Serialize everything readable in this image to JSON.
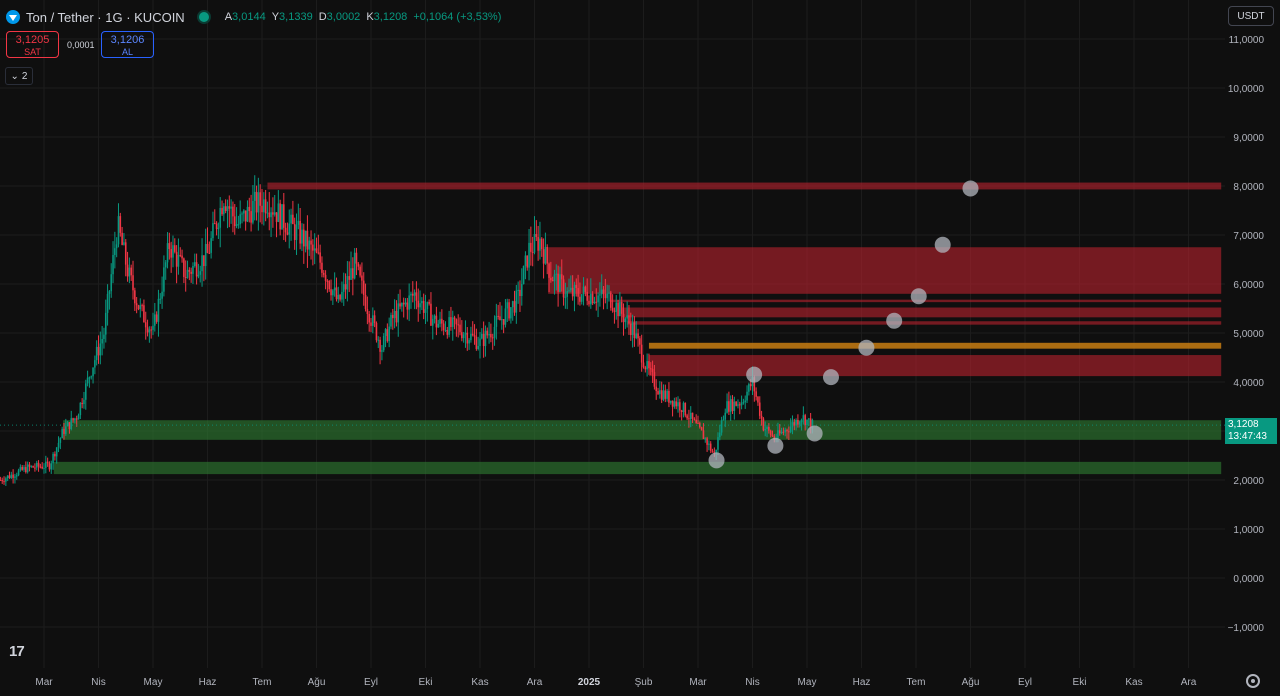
{
  "header": {
    "symbol": "Ton / Tether · 1G · KUCOIN",
    "ohlc": [
      {
        "k": "A",
        "v": "3,0144"
      },
      {
        "k": "Y",
        "v": "3,1339"
      },
      {
        "k": "D",
        "v": "3,0002"
      },
      {
        "k": "K",
        "v": "3,1208"
      }
    ],
    "change": "+0,1064 (+3,53%)"
  },
  "trade": {
    "sell_price": "3,1205",
    "sell_label": "SAT",
    "spread": "0,0001",
    "buy_price": "3,1206",
    "buy_label": "AL"
  },
  "collapse": {
    "label": "2"
  },
  "currency": "USDT",
  "price_tag": {
    "price": "3,1208",
    "countdown": "13:47:43"
  },
  "tv_logo": "17",
  "colors": {
    "up": "#089981",
    "down": "#f23645",
    "resistance": "#b4222d",
    "support": "#2e7d32",
    "orange": "#c77d12",
    "circle": "#b2b5be"
  },
  "chart_data": {
    "type": "candlestick",
    "y_axis": {
      "range": [
        -1.6,
        11.6
      ],
      "ticks": [
        11,
        10,
        9,
        8,
        7,
        6,
        5,
        4,
        3,
        2,
        1,
        0,
        -1
      ],
      "tick_labels": [
        "11,0000",
        "10,0000",
        "9,0000",
        "8,0000",
        "7,0000",
        "6,0000",
        "5,0000",
        "4,0000",
        "3,0000",
        "2,0000",
        "1,0000",
        "0,0000",
        "−1,0000"
      ]
    },
    "x_axis": {
      "labels": [
        "Mar",
        "Nis",
        "May",
        "Haz",
        "Tem",
        "Ağu",
        "Eyl",
        "Eki",
        "Kas",
        "Ara",
        "2025",
        "Şub",
        "Mar",
        "Nis",
        "May",
        "Haz",
        "Tem",
        "Ağu",
        "Eyl",
        "Eki",
        "Kas",
        "Ara"
      ],
      "bold": [
        "2025"
      ],
      "months_from_start": [
        0,
        1,
        2,
        3,
        4,
        5,
        6,
        7,
        8,
        9,
        10,
        11,
        12,
        13,
        14,
        15,
        16,
        17,
        18,
        19,
        20,
        21
      ]
    },
    "price_anchors": [
      {
        "m": -0.8,
        "p": 2.0
      },
      {
        "m": -0.3,
        "p": 2.25
      },
      {
        "m": 0.1,
        "p": 2.3
      },
      {
        "m": 0.35,
        "p": 3.0
      },
      {
        "m": 0.6,
        "p": 3.3
      },
      {
        "m": 0.85,
        "p": 4.2
      },
      {
        "m": 1.1,
        "p": 5.0
      },
      {
        "m": 1.35,
        "p": 7.2
      },
      {
        "m": 1.55,
        "p": 6.2
      },
      {
        "m": 1.75,
        "p": 5.5
      },
      {
        "m": 2.0,
        "p": 5.0
      },
      {
        "m": 2.3,
        "p": 6.8
      },
      {
        "m": 2.6,
        "p": 6.2
      },
      {
        "m": 3.0,
        "p": 6.6
      },
      {
        "m": 3.3,
        "p": 7.8
      },
      {
        "m": 3.55,
        "p": 7.2
      },
      {
        "m": 3.85,
        "p": 7.6
      },
      {
        "m": 4.1,
        "p": 7.7
      },
      {
        "m": 4.4,
        "p": 7.3
      },
      {
        "m": 4.7,
        "p": 7.0
      },
      {
        "m": 5.1,
        "p": 6.4
      },
      {
        "m": 5.4,
        "p": 5.6
      },
      {
        "m": 5.7,
        "p": 6.4
      },
      {
        "m": 6.0,
        "p": 5.3
      },
      {
        "m": 6.2,
        "p": 4.7
      },
      {
        "m": 6.4,
        "p": 5.3
      },
      {
        "m": 6.8,
        "p": 5.8
      },
      {
        "m": 7.2,
        "p": 5.2
      },
      {
        "m": 7.6,
        "p": 5.1
      },
      {
        "m": 8.0,
        "p": 4.8
      },
      {
        "m": 8.4,
        "p": 5.3
      },
      {
        "m": 8.7,
        "p": 5.7
      },
      {
        "m": 8.9,
        "p": 6.7
      },
      {
        "m": 9.1,
        "p": 6.9
      },
      {
        "m": 9.3,
        "p": 6.2
      },
      {
        "m": 9.6,
        "p": 5.8
      },
      {
        "m": 10.0,
        "p": 5.8
      },
      {
        "m": 10.4,
        "p": 5.7
      },
      {
        "m": 10.8,
        "p": 5.1
      },
      {
        "m": 11.05,
        "p": 4.3
      },
      {
        "m": 11.3,
        "p": 3.8
      },
      {
        "m": 11.7,
        "p": 3.5
      },
      {
        "m": 12.1,
        "p": 2.9
      },
      {
        "m": 12.3,
        "p": 2.5
      },
      {
        "m": 12.5,
        "p": 3.5
      },
      {
        "m": 12.8,
        "p": 3.6
      },
      {
        "m": 13.0,
        "p": 4.0
      },
      {
        "m": 13.2,
        "p": 3.1
      },
      {
        "m": 13.4,
        "p": 2.85
      },
      {
        "m": 13.7,
        "p": 3.1
      },
      {
        "m": 13.9,
        "p": 3.3
      },
      {
        "m": 14.1,
        "p": 3.12
      }
    ],
    "zones": [
      {
        "kind": "resistance",
        "x0": 4.1,
        "x1": 21.6,
        "y0": 7.93,
        "y1": 8.07
      },
      {
        "kind": "resistance",
        "x0": 9.25,
        "x1": 21.6,
        "y0": 5.8,
        "y1": 6.75
      },
      {
        "kind": "resistance",
        "x0": 10.4,
        "x1": 21.6,
        "y0": 5.63,
        "y1": 5.68
      },
      {
        "kind": "resistance",
        "x0": 10.6,
        "x1": 21.6,
        "y0": 5.32,
        "y1": 5.52
      },
      {
        "kind": "resistance",
        "x0": 10.7,
        "x1": 21.6,
        "y0": 5.17,
        "y1": 5.24
      },
      {
        "kind": "orange",
        "x0": 11.1,
        "x1": 21.6,
        "y0": 4.68,
        "y1": 4.8
      },
      {
        "kind": "resistance",
        "x0": 11.1,
        "x1": 21.6,
        "y0": 4.12,
        "y1": 4.55
      },
      {
        "kind": "support",
        "x0": 0.35,
        "x1": 21.6,
        "y0": 2.82,
        "y1": 3.22
      },
      {
        "kind": "support",
        "x0": 0.18,
        "x1": 21.6,
        "y0": 2.12,
        "y1": 2.37
      }
    ],
    "circle_points": [
      {
        "m": 12.34,
        "p": 2.4
      },
      {
        "m": 13.03,
        "p": 4.15
      },
      {
        "m": 13.42,
        "p": 2.7
      },
      {
        "m": 14.14,
        "p": 2.95
      },
      {
        "m": 14.44,
        "p": 4.1
      },
      {
        "m": 15.09,
        "p": 4.7
      },
      {
        "m": 15.6,
        "p": 5.25
      },
      {
        "m": 16.05,
        "p": 5.75
      },
      {
        "m": 16.49,
        "p": 6.8
      },
      {
        "m": 17.0,
        "p": 7.95
      }
    ],
    "last_price": 3.1208
  }
}
